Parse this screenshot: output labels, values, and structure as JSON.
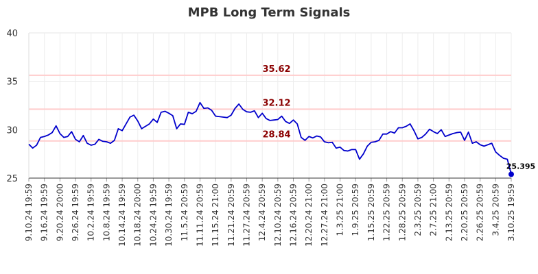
{
  "chart_data": {
    "type": "line",
    "title": "MPB Long Term Signals",
    "ylim": [
      25,
      40
    ],
    "y_ticks": [
      "25",
      "30",
      "35",
      "40"
    ],
    "grid": true,
    "x_tick_labels": [
      "9.10.24 19:59",
      "9.16.24 19:59",
      "9.20.24 20:00",
      "9.26.24 19:59",
      "10.2.24 19:59",
      "10.8.24 19:59",
      "10.14.24 19:59",
      "10.18.24 20:00",
      "10.24.24 19:59",
      "10.30.24 19:59",
      "11.5.24 20:59",
      "11.11.24 20:59",
      "11.15.24 21:00",
      "11.21.24 20:59",
      "11.27.24 20:59",
      "12.4.24 20:59",
      "12.10.24 20:59",
      "12.16.24 20:59",
      "12.20.24 21:00",
      "12.27.24 21:00",
      "1.3.25 21:00",
      "1.9.25 20:59",
      "1.15.25 20:59",
      "1.22.25 20:59",
      "1.28.25 20:59",
      "2.3.25 20:59",
      "2.7.25 21:00",
      "2.13.25 20:59",
      "2.20.25 20:59",
      "2.26.25 20:59",
      "3.4.25 20:59",
      "3.10.25 19:59"
    ],
    "levels": [
      {
        "value": 35.62,
        "label": "35.62"
      },
      {
        "value": 32.12,
        "label": "32.12"
      },
      {
        "value": 28.84,
        "label": "28.84"
      }
    ],
    "series": [
      {
        "color": "#0000cc",
        "values": [
          28.5,
          28.1,
          28.4,
          29.2,
          29.3,
          29.45,
          29.7,
          30.4,
          29.6,
          29.2,
          29.3,
          29.8,
          29.0,
          28.75,
          29.4,
          28.6,
          28.4,
          28.5,
          29.0,
          28.8,
          28.75,
          28.6,
          28.9,
          30.1,
          29.9,
          30.6,
          31.3,
          31.5,
          30.9,
          30.1,
          30.35,
          30.6,
          31.1,
          30.75,
          31.8,
          31.9,
          31.7,
          31.45,
          30.1,
          30.6,
          30.55,
          31.8,
          31.65,
          31.9,
          32.8,
          32.2,
          32.25,
          32.0,
          31.4,
          31.35,
          31.3,
          31.25,
          31.5,
          32.2,
          32.65,
          32.1,
          31.85,
          31.8,
          31.95,
          31.25,
          31.7,
          31.15,
          30.95,
          31.0,
          31.05,
          31.4,
          30.85,
          30.65,
          31.0,
          30.6,
          29.2,
          28.9,
          29.3,
          29.15,
          29.35,
          29.25,
          28.75,
          28.65,
          28.7,
          28.1,
          28.2,
          27.85,
          27.8,
          27.95,
          27.95,
          26.95,
          27.5,
          28.3,
          28.7,
          28.75,
          28.9,
          29.55,
          29.55,
          29.8,
          29.65,
          30.2,
          30.2,
          30.35,
          30.6,
          29.9,
          29.05,
          29.2,
          29.55,
          30.05,
          29.8,
          29.6,
          30.0,
          29.3,
          29.45,
          29.6,
          29.7,
          29.75,
          28.9,
          29.75,
          28.6,
          28.75,
          28.45,
          28.3,
          28.45,
          28.6,
          27.7,
          27.35,
          27.05,
          26.95,
          25.395
        ]
      }
    ],
    "last_value": 25.395,
    "last_label": "25.395"
  }
}
